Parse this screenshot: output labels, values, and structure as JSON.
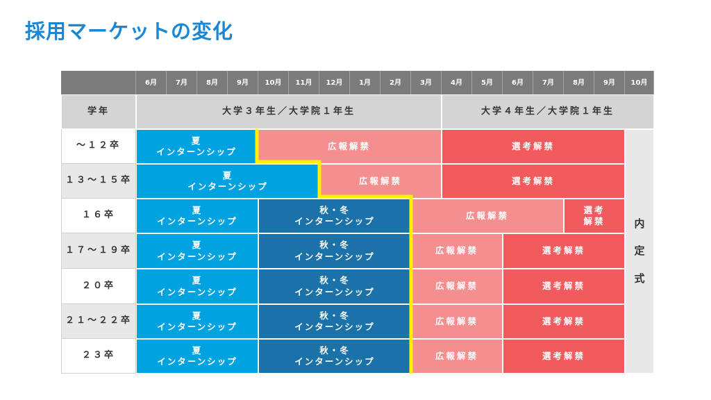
{
  "title": "採用マーケットの変化",
  "months": [
    "6月",
    "7月",
    "8月",
    "9月",
    "10月",
    "11月",
    "12月",
    "1月",
    "2月",
    "3月",
    "4月",
    "5月",
    "6月",
    "7月",
    "8月",
    "9月",
    "10月"
  ],
  "header": {
    "grade_label": "学年",
    "year3_label": "大学３年生／大学院１年生",
    "year4_label": "大学４年生／大学院１年生"
  },
  "rows": [
    {
      "label": "～１２卒",
      "summer": "夏\nインターンシップ",
      "autumn": "",
      "pr": "広報解禁",
      "selection": "選考解禁"
    },
    {
      "label": "１３～１５卒",
      "summer": "夏\nインターンシップ",
      "autumn": "",
      "pr": "広報解禁",
      "selection": "選考解禁"
    },
    {
      "label": "１６卒",
      "summer": "夏\nインターンシップ",
      "autumn": "秋・冬\nインターンシップ",
      "pr": "広報解禁",
      "selection": "選考\n解禁"
    },
    {
      "label": "１７～１９卒",
      "summer": "夏\nインターンシップ",
      "autumn": "秋・冬\nインターンシップ",
      "pr": "広報解禁",
      "selection": "選考解禁"
    },
    {
      "label": "２０卒",
      "summer": "夏\nインターンシップ",
      "autumn": "秋・冬\nインターンシップ",
      "pr": "広報解禁",
      "selection": "選考解禁"
    },
    {
      "label": "２１～２２卒",
      "summer": "夏\nインターンシップ",
      "autumn": "秋・冬\nインターンシップ",
      "pr": "広報解禁",
      "selection": "選考解禁"
    },
    {
      "label": "２３卒",
      "summer": "夏\nインターンシップ",
      "autumn": "秋・冬\nインターンシップ",
      "pr": "広報解禁",
      "selection": "選考解禁"
    }
  ],
  "naitei": [
    "内",
    "定",
    "式"
  ],
  "colors": {
    "summer": "#00a3e0",
    "autumn": "#1a72a8",
    "pr": "#f58e8e",
    "selection": "#f15b5d",
    "divider": "#fff200",
    "title": "#1a86d6"
  }
}
